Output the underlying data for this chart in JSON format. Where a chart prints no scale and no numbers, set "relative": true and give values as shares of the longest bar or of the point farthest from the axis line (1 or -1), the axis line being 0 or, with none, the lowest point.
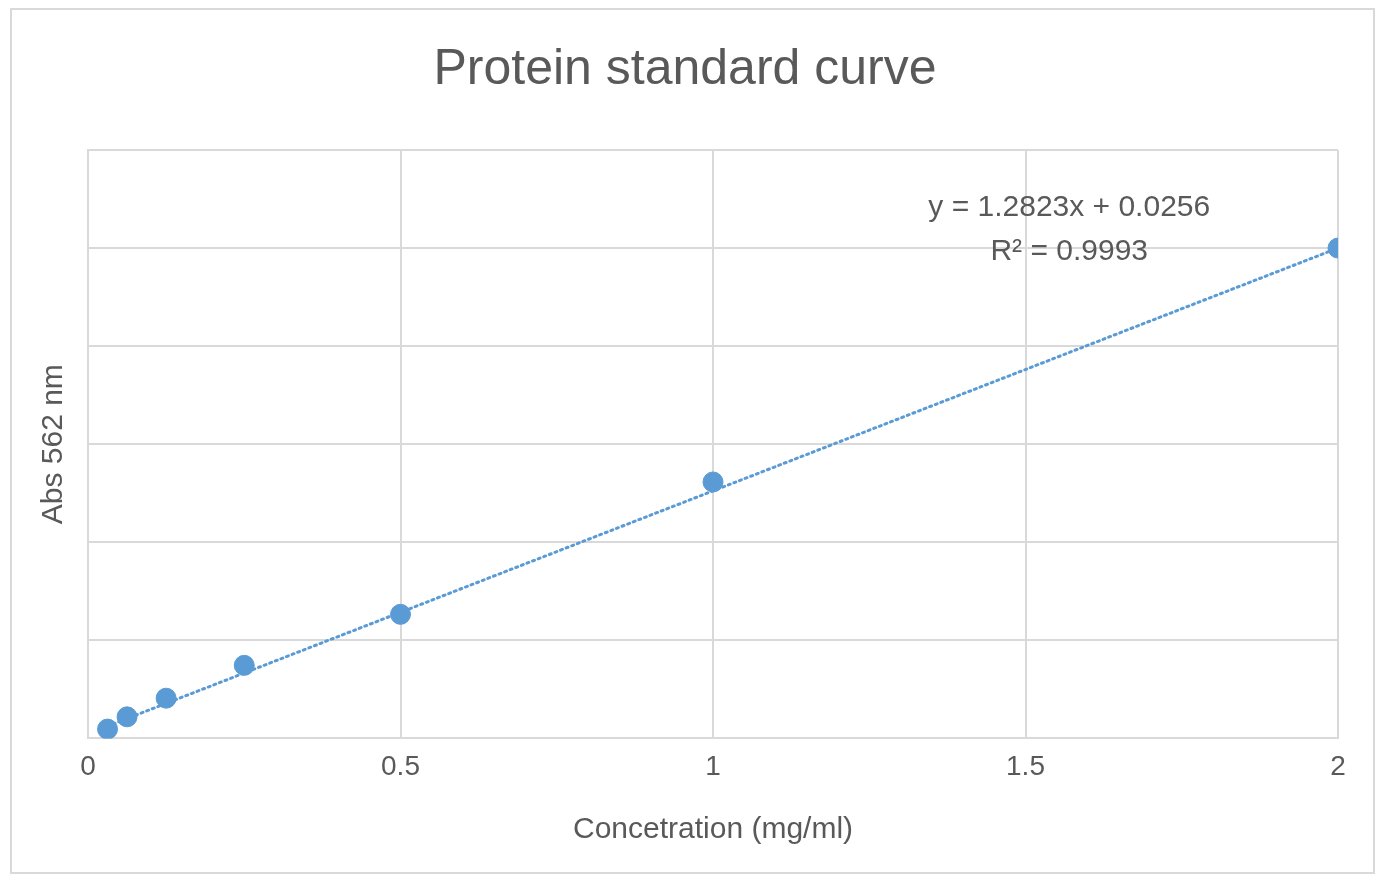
{
  "chart_data": {
    "type": "scatter",
    "title": "Protein standard curve",
    "xlabel": "Concetration (mg/ml)",
    "ylabel": "Abs 562 nm",
    "relative": true,
    "xlim": [
      0,
      2
    ],
    "xticks": [
      0,
      0.5,
      1,
      1.5,
      2
    ],
    "grid": true,
    "legend": false,
    "marker": "circle",
    "x": [
      0.03125,
      0.0625,
      0.125,
      0.25,
      0.5,
      1,
      2
    ],
    "series": [
      {
        "color": "#5b9bd5",
        "values": [
          0.019,
          0.044,
          0.082,
          0.149,
          0.253,
          0.523,
          1
        ]
      },
      {
        "type": "line",
        "color": "#5b9bd5",
        "line_style": "dotted",
        "marker": "none",
        "x": [
          0.03125,
          2
        ],
        "values": [
          0.025,
          1
        ]
      }
    ],
    "annotations": [
      "y = 1.2823x + 0.0256",
      "R² = 0.9993"
    ]
  }
}
